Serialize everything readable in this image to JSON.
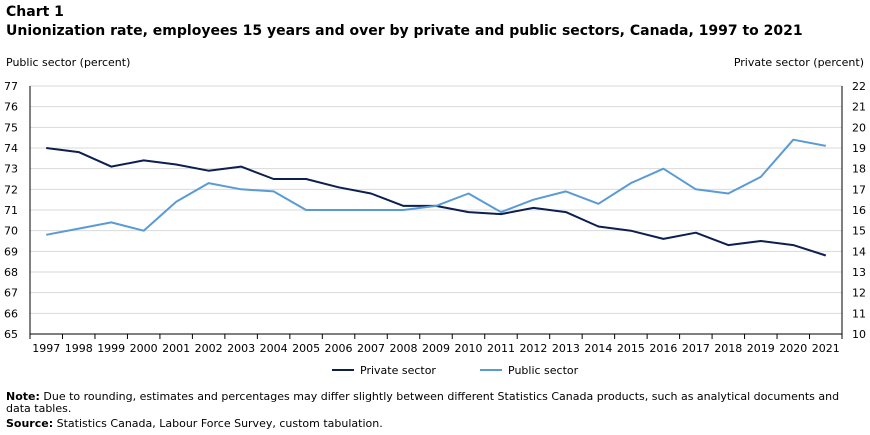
{
  "header": {
    "chart_label": "Chart 1",
    "title": "Unionization  rate, employees 15 years and over by private and public  sectors, Canada, 1997 to 2021"
  },
  "footer": {
    "note_label": "Note:",
    "note_text": " Due to rounding, estimates and percentages may differ slightly between different Statistics Canada products, such as analytical documents and data tables.",
    "source_label": "Source:",
    "source_text": "  Statistics Canada, Labour Force Survey, custom tabulation."
  },
  "chart_data": {
    "type": "line",
    "ylabel": "Public sector (percent)",
    "y2label": "Private sector (percent)",
    "ylim": [
      65,
      77
    ],
    "y2lim": [
      10,
      22
    ],
    "yticks": [
      65,
      66,
      67,
      68,
      69,
      70,
      71,
      72,
      73,
      74,
      75,
      76,
      77
    ],
    "y2ticks": [
      10,
      11,
      12,
      13,
      14,
      15,
      16,
      17,
      18,
      19,
      20,
      21,
      22
    ],
    "x": [
      "1997",
      "1998",
      "1999",
      "2000",
      "2001",
      "2002",
      "2003",
      "2004",
      "2005",
      "2006",
      "2007",
      "2008",
      "2009",
      "2010",
      "2011",
      "2012",
      "2013",
      "2014",
      "2015",
      "2016",
      "2017",
      "2018",
      "2019",
      "2020",
      "2021"
    ],
    "series": [
      {
        "name": "Private sector",
        "axis": "right",
        "color": "#0d1f4f",
        "values": [
          19.0,
          18.8,
          18.1,
          18.4,
          18.2,
          17.9,
          18.1,
          17.5,
          17.5,
          17.1,
          16.8,
          16.2,
          16.2,
          15.9,
          15.8,
          16.1,
          15.9,
          15.2,
          15.0,
          14.6,
          14.9,
          14.3,
          14.5,
          14.3,
          13.8
        ]
      },
      {
        "name": "Public sector",
        "axis": "left",
        "color": "#5b9bd5",
        "values": [
          69.8,
          70.1,
          70.4,
          70.0,
          71.4,
          72.3,
          72.0,
          71.9,
          71.0,
          71.0,
          71.0,
          71.0,
          71.2,
          71.8,
          70.9,
          71.5,
          71.9,
          71.3,
          72.3,
          73.0,
          72.0,
          71.8,
          72.6,
          74.4,
          74.1
        ]
      }
    ],
    "grid": true,
    "legend": "bottom-center"
  }
}
